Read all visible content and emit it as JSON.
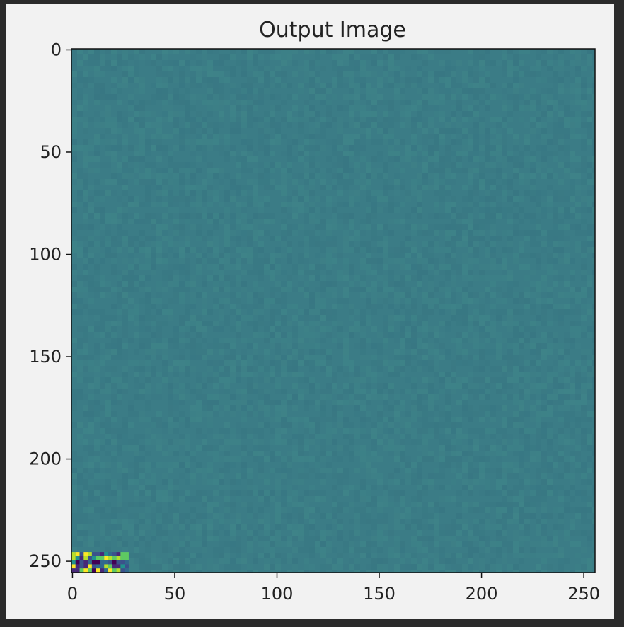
{
  "chart_data": {
    "type": "heatmap",
    "title": "Output Image",
    "xlabel": "",
    "ylabel": "",
    "image_size": [
      256,
      256
    ],
    "xlim": [
      -0.5,
      255.5
    ],
    "ylim": [
      255.5,
      -0.5
    ],
    "x_ticks": [
      0,
      50,
      100,
      150,
      200,
      250
    ],
    "y_ticks": [
      0,
      50,
      100,
      150,
      200,
      250
    ],
    "colormap": "viridis",
    "base_color": "#3b7c86",
    "description_values": "near-uniform teal field with fine noise; small high-contrast patch near bottom-left (x≈0–28, y≈246–256)"
  },
  "colors": {
    "background": "#f2f2f2",
    "outer": "#2b2b2b",
    "viridis_dark": "#440154",
    "viridis_mid": "#3b7c86",
    "viridis_light": "#fde725"
  }
}
